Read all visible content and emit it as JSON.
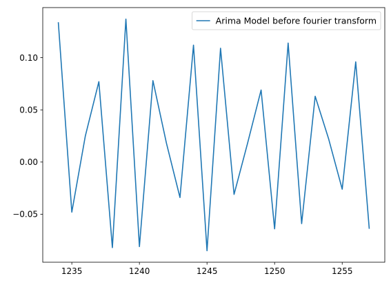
{
  "chart_data": {
    "type": "line",
    "title": "",
    "xlabel": "",
    "ylabel": "",
    "xlim": [
      1232.85,
      1258.15
    ],
    "ylim": [
      -0.096,
      0.148
    ],
    "x_ticks": [
      1235,
      1240,
      1245,
      1250,
      1255
    ],
    "y_ticks": [
      -0.05,
      0.0,
      0.05,
      0.1
    ],
    "y_tick_labels": [
      "−0.05",
      "0.00",
      "0.05",
      "0.10"
    ],
    "grid": false,
    "legend_position": "top-right",
    "series": [
      {
        "name": "Arima Model before fourier transform",
        "color": "#1f77b4",
        "x": [
          1234,
          1235,
          1236,
          1237,
          1238,
          1239,
          1240,
          1241,
          1242,
          1243,
          1244,
          1245,
          1246,
          1247,
          1248,
          1249,
          1250,
          1251,
          1252,
          1253,
          1254,
          1255,
          1256,
          1257
        ],
        "values": [
          0.134,
          -0.048,
          0.025,
          0.077,
          -0.082,
          0.137,
          -0.081,
          0.078,
          0.018,
          -0.034,
          0.112,
          -0.085,
          0.109,
          -0.031,
          0.018,
          0.069,
          -0.064,
          0.114,
          -0.059,
          0.063,
          0.022,
          -0.026,
          0.096,
          -0.064
        ]
      }
    ]
  }
}
